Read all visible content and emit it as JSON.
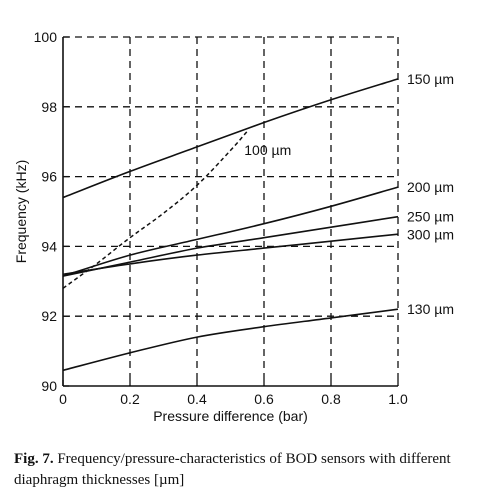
{
  "chart_data": {
    "type": "line",
    "xlabel": "Pressure difference (bar)",
    "ylabel": "Frequency (kHz)",
    "xlim": [
      0,
      1.0
    ],
    "ylim": [
      90,
      100
    ],
    "x_ticks": [
      "0",
      "0.2",
      "0.4",
      "0.6",
      "0.8",
      "1.0"
    ],
    "y_ticks": [
      "90",
      "92",
      "94",
      "96",
      "98",
      "100"
    ],
    "grid": "dashed",
    "series": [
      {
        "name": "150 µm",
        "style": "solid",
        "x": [
          0,
          0.2,
          0.4,
          0.6,
          0.8,
          1.0
        ],
        "y": [
          95.4,
          96.15,
          96.85,
          97.55,
          98.2,
          98.8
        ]
      },
      {
        "name": "100 µm",
        "style": "dashed",
        "x": [
          0,
          0.1,
          0.2,
          0.3,
          0.4,
          0.5,
          0.55
        ],
        "y": [
          92.8,
          93.5,
          94.25,
          94.95,
          95.75,
          96.75,
          97.3
        ]
      },
      {
        "name": "200 µm",
        "style": "solid",
        "x": [
          0,
          0.2,
          0.4,
          0.6,
          0.8,
          1.0
        ],
        "y": [
          93.15,
          93.75,
          94.2,
          94.65,
          95.15,
          95.7
        ]
      },
      {
        "name": "250 µm",
        "style": "solid",
        "x": [
          0,
          0.2,
          0.4,
          0.6,
          0.8,
          1.0
        ],
        "y": [
          93.15,
          93.55,
          93.95,
          94.25,
          94.55,
          94.85
        ]
      },
      {
        "name": "300 µm",
        "style": "solid",
        "x": [
          0,
          0.2,
          0.4,
          0.6,
          0.8,
          1.0
        ],
        "y": [
          93.2,
          93.5,
          93.75,
          93.95,
          94.15,
          94.35
        ]
      },
      {
        "name": "130 µm",
        "style": "solid",
        "x": [
          0,
          0.2,
          0.4,
          0.6,
          0.8,
          1.0
        ],
        "y": [
          90.45,
          90.95,
          91.4,
          91.7,
          91.95,
          92.2
        ]
      }
    ]
  },
  "caption": {
    "label": "Fig. 7.",
    "text": "Frequency/pressure-characteristics of BOD sensors with different diaphragm thicknesses [µm]"
  }
}
